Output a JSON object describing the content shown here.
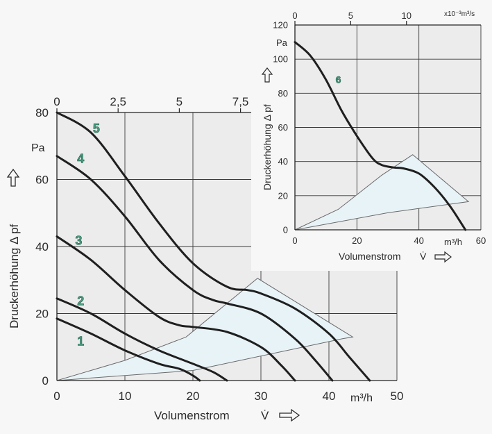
{
  "chart_data": [
    {
      "type": "line",
      "xlabel": "Volumenstrom",
      "xsymbol": "V̇",
      "xunit": "m³/h",
      "ylabel": "Druckerhöhung Δ pf",
      "yunit": "Pa",
      "xlim": [
        0,
        50
      ],
      "ylim": [
        0,
        80
      ],
      "x_ticks": [
        "0",
        "10",
        "20",
        "30",
        "40",
        "50"
      ],
      "y_ticks": [
        "0",
        "20",
        "40",
        "60",
        "80"
      ],
      "top_axis": {
        "xlim": [
          0,
          13.89
        ],
        "ticks": [
          "0",
          "2,5",
          "5",
          "7,5"
        ],
        "tick_values": [
          0,
          2.5,
          5,
          7.5
        ]
      },
      "grid": true,
      "series": [
        {
          "name": "1",
          "x": [
            0,
            5,
            10,
            15,
            18,
            20,
            21
          ],
          "y": [
            18.5,
            14,
            9,
            5,
            3.5,
            1.5,
            0
          ]
        },
        {
          "name": "2",
          "x": [
            0,
            5,
            10,
            15,
            20,
            23,
            25
          ],
          "y": [
            24.5,
            20,
            14,
            9,
            5,
            2.5,
            0
          ]
        },
        {
          "name": "3",
          "x": [
            0,
            5,
            10,
            15,
            18,
            20,
            25,
            30,
            33,
            35
          ],
          "y": [
            43,
            36,
            27,
            19,
            16.5,
            16,
            14.5,
            10,
            4.5,
            0
          ]
        },
        {
          "name": "4",
          "x": [
            0,
            5,
            10,
            15,
            20,
            23,
            25,
            30,
            35,
            38,
            40.5
          ],
          "y": [
            67,
            60,
            49,
            36,
            27,
            24,
            23,
            20,
            12.5,
            6,
            0
          ]
        },
        {
          "name": "5",
          "x": [
            0,
            5,
            10,
            15,
            20,
            25,
            28,
            30,
            35,
            40,
            43,
            46
          ],
          "y": [
            80,
            74,
            61,
            47,
            35,
            28,
            27,
            26,
            21.5,
            14,
            7,
            0
          ]
        }
      ],
      "operating_region": [
        [
          0,
          0
        ],
        [
          20,
          3
        ],
        [
          42,
          12.5
        ],
        [
          43.5,
          13
        ],
        [
          29.5,
          30.5
        ],
        [
          19,
          13
        ],
        [
          10,
          6
        ],
        [
          0,
          0
        ]
      ]
    },
    {
      "type": "line",
      "xlabel": "Volumenstrom",
      "xsymbol": "V̇",
      "xunit": "m³/h",
      "ylabel": "Druckerhöhung Δ pf",
      "yunit": "Pa",
      "xlim": [
        0,
        60
      ],
      "ylim": [
        0,
        120
      ],
      "x_ticks": [
        "0",
        "20",
        "40",
        "60"
      ],
      "y_ticks": [
        "0",
        "20",
        "40",
        "60",
        "80",
        "100",
        "120"
      ],
      "top_axis": {
        "xlim": [
          0,
          16.67
        ],
        "unit": "x10⁻³m³/s",
        "ticks": [
          "0",
          "5",
          "10"
        ],
        "tick_values": [
          0,
          5,
          10
        ]
      },
      "grid": true,
      "series": [
        {
          "name": "6",
          "x": [
            0,
            5,
            10,
            15,
            20,
            25,
            28,
            32,
            35,
            40,
            45,
            50,
            55
          ],
          "y": [
            110,
            102,
            88,
            70,
            55,
            42,
            38,
            36.5,
            36,
            33,
            25,
            14,
            0
          ]
        }
      ],
      "operating_region": [
        [
          0,
          0
        ],
        [
          30,
          10
        ],
        [
          56,
          16.5
        ],
        [
          38,
          44
        ],
        [
          28,
          32
        ],
        [
          14,
          12
        ],
        [
          0,
          0
        ]
      ]
    }
  ]
}
